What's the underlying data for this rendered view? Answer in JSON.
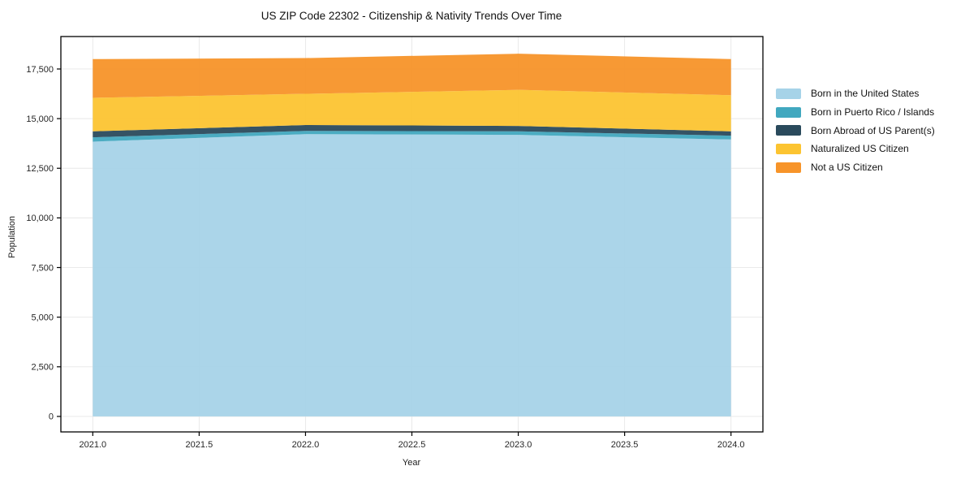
{
  "title": "US ZIP Code 22302 - Citizenship & Nativity Trends Over Time",
  "chart_data": {
    "type": "area",
    "stacked": true,
    "title": "US ZIP Code 22302 - Citizenship & Nativity Trends Over Time",
    "xlabel": "Year",
    "ylabel": "Population",
    "x": [
      2021,
      2022,
      2023,
      2024
    ],
    "series": [
      {
        "name": "Born in the United States",
        "color": "#a6d3e8",
        "values": [
          13840,
          14220,
          14180,
          13950
        ]
      },
      {
        "name": "Born in Puerto Rico / Islands",
        "color": "#41a8bf",
        "values": [
          220,
          160,
          180,
          190
        ]
      },
      {
        "name": "Born Abroad of US Parent(s)",
        "color": "#2a4a5c",
        "values": [
          300,
          300,
          270,
          220
        ]
      },
      {
        "name": "Naturalized US Citizen",
        "color": "#fcc431",
        "values": [
          1690,
          1570,
          1820,
          1820
        ]
      },
      {
        "name": "Not a US Citizen",
        "color": "#f79429",
        "values": [
          1950,
          1800,
          1820,
          1820
        ]
      }
    ],
    "totals": [
      18000,
      18050,
      18270,
      18000
    ],
    "x_ticks": [
      {
        "value": 2021.0,
        "label": "2021.0"
      },
      {
        "value": 2021.5,
        "label": "2021.5"
      },
      {
        "value": 2022.0,
        "label": "2022.0"
      },
      {
        "value": 2022.5,
        "label": "2022.5"
      },
      {
        "value": 2023.0,
        "label": "2023.0"
      },
      {
        "value": 2023.5,
        "label": "2023.5"
      },
      {
        "value": 2024.0,
        "label": "2024.0"
      }
    ],
    "y_ticks": [
      {
        "value": 0,
        "label": "0"
      },
      {
        "value": 2500,
        "label": "2,500"
      },
      {
        "value": 5000,
        "label": "5,000"
      },
      {
        "value": 7500,
        "label": "7,500"
      },
      {
        "value": 10000,
        "label": "10,000"
      },
      {
        "value": 12500,
        "label": "12,500"
      },
      {
        "value": 15000,
        "label": "15,000"
      },
      {
        "value": 17500,
        "label": "17,500"
      }
    ],
    "xlim": [
      2020.85,
      2024.15
    ],
    "ylim": [
      -780,
      19135
    ],
    "grid": true,
    "grid_color": "#e7e7e7",
    "frame_color": "#000000",
    "legend_position": "right"
  }
}
